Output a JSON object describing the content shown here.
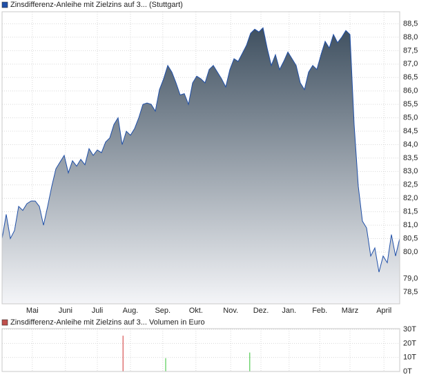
{
  "chart_data": [
    {
      "type": "area",
      "series": [
        {
          "name": "Zinsdifferenz-Anleihe mit Zielzins auf 3... (Stuttgart)",
          "color": "#1f4fa8",
          "values": [
            80.5,
            81.4,
            80.5,
            80.8,
            81.7,
            81.55,
            81.8,
            81.9,
            81.9,
            81.7,
            81.0,
            81.7,
            82.45,
            83.1,
            83.35,
            83.6,
            82.95,
            83.4,
            83.2,
            83.45,
            83.25,
            83.85,
            83.6,
            83.8,
            83.7,
            84.1,
            84.25,
            84.75,
            85.0,
            84.0,
            84.5,
            84.35,
            84.6,
            85.0,
            85.5,
            85.55,
            85.5,
            85.25,
            86.05,
            86.45,
            86.95,
            86.7,
            86.3,
            85.85,
            85.9,
            85.5,
            86.3,
            86.55,
            86.45,
            86.3,
            86.8,
            86.95,
            86.7,
            86.45,
            86.15,
            86.8,
            87.2,
            87.1,
            87.4,
            87.7,
            88.15,
            88.3,
            88.2,
            88.35,
            87.6,
            86.95,
            87.35,
            86.8,
            87.1,
            87.45,
            87.2,
            86.95,
            86.3,
            86.05,
            86.7,
            86.95,
            86.8,
            87.35,
            87.85,
            87.6,
            88.1,
            87.8,
            88.0,
            88.25,
            88.1,
            84.75,
            82.45,
            81.15,
            80.9,
            79.85,
            80.15,
            79.25,
            79.85,
            79.6,
            80.65,
            79.85,
            80.5
          ]
        }
      ],
      "xlim": [
        0,
        96
      ],
      "xticks": [
        {
          "value": 7.3,
          "label": "Mai"
        },
        {
          "value": 15.3,
          "label": "Juni"
        },
        {
          "value": 23,
          "label": "Juli"
        },
        {
          "value": 31,
          "label": "Aug."
        },
        {
          "value": 38.8,
          "label": "Sep."
        },
        {
          "value": 46.8,
          "label": "Okt."
        },
        {
          "value": 55.2,
          "label": "Nov."
        },
        {
          "value": 62.5,
          "label": "Dez."
        },
        {
          "value": 69.3,
          "label": "Jan."
        },
        {
          "value": 76.7,
          "label": "Feb."
        },
        {
          "value": 84,
          "label": "März"
        },
        {
          "value": 92.2,
          "label": "April"
        }
      ],
      "ylim": [
        78.07,
        88.95
      ],
      "yticks": [
        {
          "value": 78.5,
          "label": "78,5"
        },
        {
          "value": 79,
          "label": "79,0"
        },
        {
          "value": 80,
          "label": "80,0"
        },
        {
          "value": 80.5,
          "label": "80,5"
        },
        {
          "value": 81,
          "label": "81,0"
        },
        {
          "value": 81.5,
          "label": "81,5"
        },
        {
          "value": 82,
          "label": "82,0"
        },
        {
          "value": 82.5,
          "label": "82,5"
        },
        {
          "value": 83,
          "label": "83,0"
        },
        {
          "value": 83.5,
          "label": "83,5"
        },
        {
          "value": 84,
          "label": "84,0"
        },
        {
          "value": 84.5,
          "label": "84,5"
        },
        {
          "value": 85,
          "label": "85,0"
        },
        {
          "value": 85.5,
          "label": "85,5"
        },
        {
          "value": 86,
          "label": "86,0"
        },
        {
          "value": 86.5,
          "label": "86,5"
        },
        {
          "value": 87,
          "label": "87,0"
        },
        {
          "value": 87.5,
          "label": "87,5"
        },
        {
          "value": 88,
          "label": "88,0"
        },
        {
          "value": 88.5,
          "label": "88,5"
        }
      ],
      "grid": true
    },
    {
      "type": "bar",
      "series": [
        {
          "name": "Zinsdifferenz-Anleihe mit Zielzins auf 3... Volumen in Euro",
          "color": "#c0504d",
          "x": [
            29.2,
            39.5,
            59.8
          ],
          "values": [
            25500,
            9500,
            13500
          ],
          "colors": [
            "#d03030",
            "#30c030",
            "#30c030"
          ]
        }
      ],
      "xlim": [
        0,
        96
      ],
      "ylim": [
        0,
        30500
      ],
      "yticks": [
        {
          "value": 0,
          "label": "0T"
        },
        {
          "value": 10000,
          "label": "10T"
        },
        {
          "value": 20000,
          "label": "20T"
        },
        {
          "value": 30000,
          "label": "30T"
        }
      ],
      "grid": true
    }
  ]
}
